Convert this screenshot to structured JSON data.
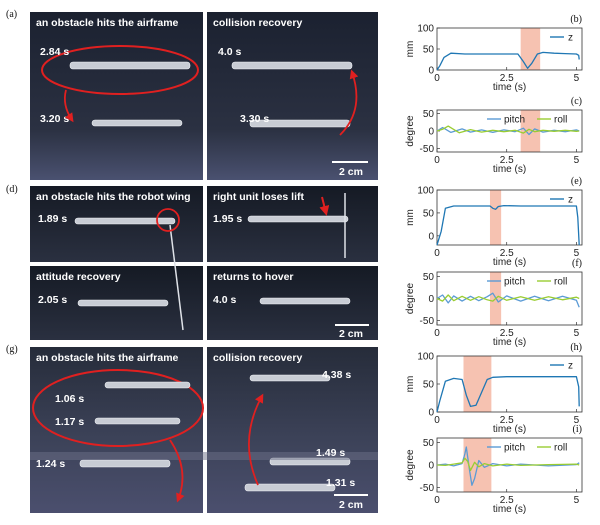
{
  "colors": {
    "z": "#1f77b4",
    "pitch": "#5b9bd5",
    "roll": "#9acd32",
    "highlight": "#f4b7a3",
    "ellipse": "#e02020",
    "arrow": "#e02020"
  },
  "photo_panels": [
    {
      "letter": "(a)",
      "left_title": "an obstacle hits the airframe",
      "right_title": "collision recovery",
      "times": [
        "2.84 s",
        "3.20 s",
        "4.0 s",
        "3.30 s"
      ],
      "scale": "2 cm"
    },
    {
      "letter": "(d)",
      "tl_title": "an obstacle hits the robot wing",
      "tr_title": "right unit loses lift",
      "bl_title": "attitude recovery",
      "br_title": "returns to hover",
      "times": [
        "1.89 s",
        "1.95 s",
        "2.05 s",
        "4.0 s"
      ],
      "scale": "2 cm"
    },
    {
      "letter": "(g)",
      "left_title": "an obstacle hits the airframe",
      "right_title": "collision recovery",
      "times": [
        "1.06 s",
        "1.17 s",
        "1.24 s",
        "4.38 s",
        "1.49 s",
        "1.31 s"
      ],
      "scale": "2 cm"
    }
  ],
  "chart_data": [
    {
      "id": "b",
      "letter": "(b)",
      "type": "line",
      "ylabel": "mm",
      "xlabel": "time (s)",
      "ylim": [
        0,
        100
      ],
      "yticks": [
        0,
        50,
        100
      ],
      "xlim": [
        0,
        5.2
      ],
      "xticks": [
        "0",
        "2.5",
        "5"
      ],
      "highlight": [
        3.0,
        3.7
      ],
      "series": [
        {
          "name": "z",
          "color_key": "z",
          "x": [
            0,
            0.1,
            0.25,
            0.5,
            1.0,
            1.5,
            2.0,
            2.5,
            2.9,
            3.1,
            3.25,
            3.4,
            3.6,
            3.8,
            4.2,
            4.6,
            5.0,
            5.08,
            5.1
          ],
          "y": [
            0,
            10,
            30,
            40,
            38,
            38,
            38,
            38,
            38,
            20,
            4,
            16,
            38,
            42,
            40,
            39,
            38,
            35,
            25
          ]
        }
      ]
    },
    {
      "id": "c",
      "letter": "(c)",
      "type": "line",
      "ylabel": "degree",
      "xlabel": "time (s)",
      "ylim": [
        -60,
        60
      ],
      "yticks": [
        -50,
        0,
        50
      ],
      "xlim": [
        0,
        5.2
      ],
      "xticks": [
        "0",
        "2.5",
        "5"
      ],
      "highlight": [
        3.0,
        3.7
      ],
      "series": [
        {
          "name": "pitch",
          "color_key": "pitch",
          "x": [
            0,
            0.2,
            0.5,
            0.9,
            1.2,
            1.6,
            2.0,
            2.4,
            2.8,
            3.1,
            3.3,
            3.5,
            3.8,
            4.2,
            4.6,
            5.0,
            5.1
          ],
          "y": [
            0,
            10,
            -4,
            6,
            -3,
            3,
            -4,
            3,
            -2,
            8,
            -10,
            6,
            -3,
            2,
            -2,
            3,
            0
          ]
        },
        {
          "name": "roll",
          "color_key": "roll",
          "x": [
            0,
            0.2,
            0.4,
            0.8,
            1.2,
            1.6,
            2.0,
            2.4,
            2.8,
            3.1,
            3.3,
            3.5,
            3.8,
            4.2,
            4.6,
            5.0,
            5.1
          ],
          "y": [
            0,
            5,
            14,
            -5,
            4,
            -3,
            2,
            -2,
            2,
            -6,
            5,
            -2,
            2,
            -1,
            2,
            -1,
            0
          ]
        }
      ]
    },
    {
      "id": "e",
      "letter": "(e)",
      "type": "line",
      "ylabel": "mm",
      "xlabel": "time (s)",
      "ylim": [
        -20,
        100
      ],
      "yticks": [
        0,
        50,
        100
      ],
      "xlim": [
        0,
        5.2
      ],
      "xticks": [
        "0",
        "2.5",
        "5"
      ],
      "highlight": [
        1.9,
        2.3
      ],
      "series": [
        {
          "name": "z",
          "color_key": "z",
          "x": [
            0,
            0.15,
            0.3,
            0.6,
            1.0,
            1.5,
            1.9,
            2.0,
            2.1,
            2.2,
            2.4,
            3.0,
            4.0,
            5.0,
            5.05,
            5.1
          ],
          "y": [
            -20,
            10,
            60,
            65,
            65,
            65,
            65,
            60,
            58,
            64,
            66,
            65,
            65,
            65,
            40,
            -20
          ]
        }
      ]
    },
    {
      "id": "f",
      "letter": "(f)",
      "type": "line",
      "ylabel": "degree",
      "xlabel": "time (s)",
      "ylim": [
        -60,
        60
      ],
      "yticks": [
        -50,
        0,
        50
      ],
      "xlim": [
        0,
        5.2
      ],
      "xticks": [
        "0",
        "2.5",
        "5"
      ],
      "highlight": [
        1.9,
        2.3
      ],
      "series": [
        {
          "name": "pitch",
          "color_key": "pitch",
          "x": [
            0,
            0.2,
            0.4,
            0.6,
            0.9,
            1.2,
            1.5,
            1.8,
            2.0,
            2.2,
            2.5,
            3.0,
            3.5,
            4.0,
            4.5,
            5.0,
            5.1
          ],
          "y": [
            0,
            8,
            -10,
            6,
            -6,
            5,
            -5,
            4,
            12,
            -8,
            6,
            -6,
            5,
            -5,
            5,
            -4,
            -20
          ]
        },
        {
          "name": "roll",
          "color_key": "roll",
          "x": [
            0,
            0.2,
            0.4,
            0.6,
            0.9,
            1.2,
            1.5,
            1.8,
            2.0,
            2.2,
            2.5,
            3.0,
            3.5,
            4.0,
            4.5,
            5.0,
            5.1
          ],
          "y": [
            0,
            -6,
            8,
            -5,
            5,
            -4,
            4,
            -3,
            -6,
            5,
            -4,
            4,
            -4,
            4,
            -3,
            3,
            0
          ]
        }
      ]
    },
    {
      "id": "h",
      "letter": "(h)",
      "type": "line",
      "ylabel": "mm",
      "xlabel": "time (s)",
      "ylim": [
        0,
        100
      ],
      "yticks": [
        0,
        50,
        100
      ],
      "xlim": [
        0,
        5.2
      ],
      "xticks": [
        "0",
        "2.5",
        "5"
      ],
      "highlight": [
        0.95,
        1.95
      ],
      "series": [
        {
          "name": "z",
          "color_key": "z",
          "x": [
            0,
            0.1,
            0.3,
            0.6,
            0.9,
            1.05,
            1.2,
            1.4,
            1.6,
            1.8,
            2.0,
            2.5,
            3.0,
            4.0,
            5.0,
            5.08,
            5.1
          ],
          "y": [
            0,
            20,
            55,
            60,
            58,
            30,
            10,
            12,
            35,
            58,
            62,
            63,
            63,
            63,
            63,
            45,
            10
          ]
        }
      ]
    },
    {
      "id": "i",
      "letter": "(i)",
      "type": "line",
      "ylabel": "degree",
      "xlabel": "time (s)",
      "ylim": [
        -60,
        60
      ],
      "yticks": [
        -50,
        0,
        50
      ],
      "xlim": [
        0,
        5.2
      ],
      "xticks": [
        "0",
        "2.5",
        "5"
      ],
      "highlight": [
        0.95,
        1.95
      ],
      "series": [
        {
          "name": "pitch",
          "color_key": "pitch",
          "x": [
            0,
            0.3,
            0.6,
            0.9,
            1.0,
            1.05,
            1.15,
            1.25,
            1.35,
            1.5,
            1.7,
            2.0,
            2.5,
            3.0,
            4.0,
            5.0,
            5.1
          ],
          "y": [
            0,
            2,
            -2,
            3,
            25,
            40,
            -5,
            -45,
            -30,
            10,
            -5,
            3,
            -2,
            2,
            -2,
            1,
            5
          ]
        },
        {
          "name": "roll",
          "color_key": "roll",
          "x": [
            0,
            0.3,
            0.6,
            0.9,
            1.0,
            1.1,
            1.2,
            1.35,
            1.5,
            1.7,
            2.0,
            2.5,
            3.0,
            4.0,
            5.0,
            5.1
          ],
          "y": [
            0,
            -1,
            2,
            5,
            15,
            8,
            -12,
            6,
            -4,
            3,
            -2,
            2,
            -1,
            1,
            2,
            0
          ]
        }
      ]
    }
  ]
}
